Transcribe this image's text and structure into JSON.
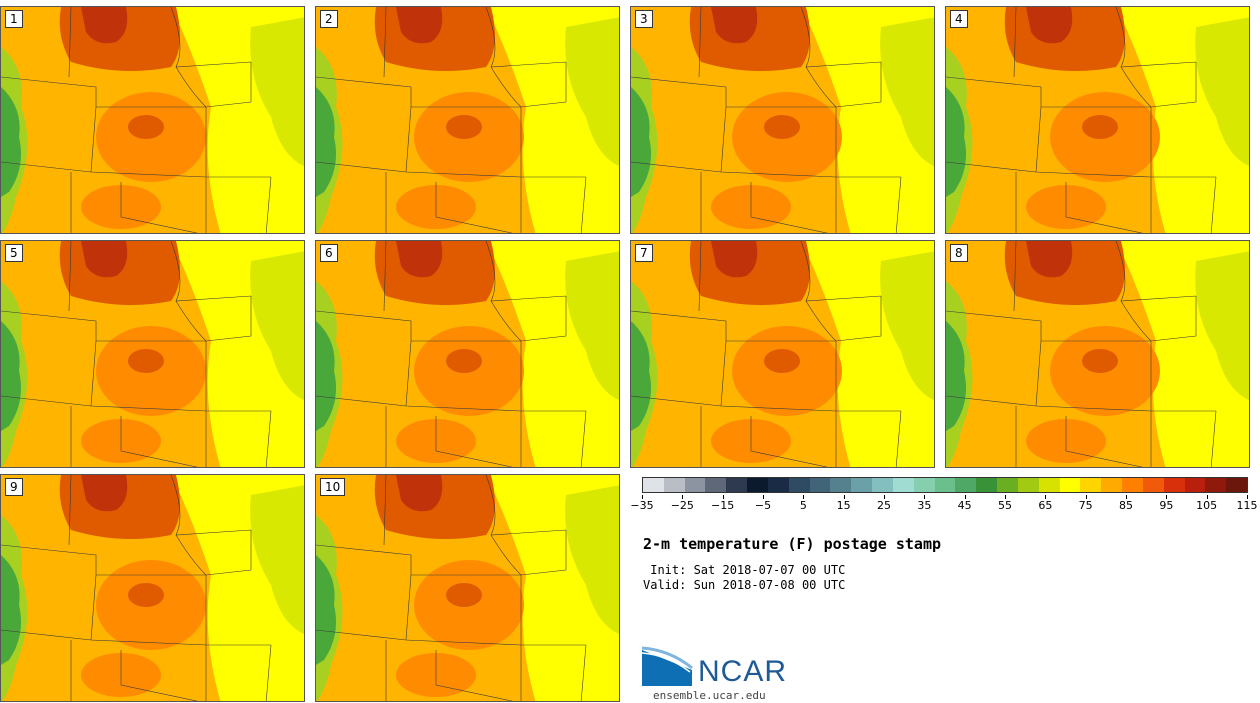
{
  "panels": [
    {
      "label": "1"
    },
    {
      "label": "2"
    },
    {
      "label": "3"
    },
    {
      "label": "4"
    },
    {
      "label": "5"
    },
    {
      "label": "6"
    },
    {
      "label": "7"
    },
    {
      "label": "8"
    },
    {
      "label": "9"
    },
    {
      "label": "10"
    }
  ],
  "colorbar": {
    "colors": [
      "#dfe3e8",
      "#b9bec6",
      "#8d94a1",
      "#5f6878",
      "#2e3a4f",
      "#0c1a2e",
      "#1a2c45",
      "#2f4a63",
      "#426478",
      "#55818f",
      "#6ba0a8",
      "#84bfc0",
      "#a0dcd2",
      "#86cfae",
      "#6abf8c",
      "#4fa866",
      "#3a9238",
      "#6aae22",
      "#a3ca12",
      "#d8e200",
      "#ffff00",
      "#ffd500",
      "#ffaa00",
      "#ff7f00",
      "#f05a0a",
      "#d8300a",
      "#b8200d",
      "#8f1a0c",
      "#6b170b"
    ],
    "tick_labels": [
      "−35",
      "−25",
      "−15",
      "−5",
      "5",
      "15",
      "25",
      "35",
      "45",
      "55",
      "65",
      "75",
      "85",
      "95",
      "105",
      "115"
    ]
  },
  "title": "2-m temperature (F) postage stamp",
  "init_line": " Init: Sat 2018-07-07 00 UTC",
  "valid_line": "Valid: Sun 2018-07-08 00 UTC",
  "logo": {
    "text": "NCAR",
    "url": "ensemble.ucar.edu"
  },
  "colors": {
    "hot": "#e05a00",
    "warm": "#ff8c00",
    "mild": "#ffb400",
    "yellow": "#ffff00",
    "lime": "#d8e800",
    "green": "#4aa83a"
  }
}
